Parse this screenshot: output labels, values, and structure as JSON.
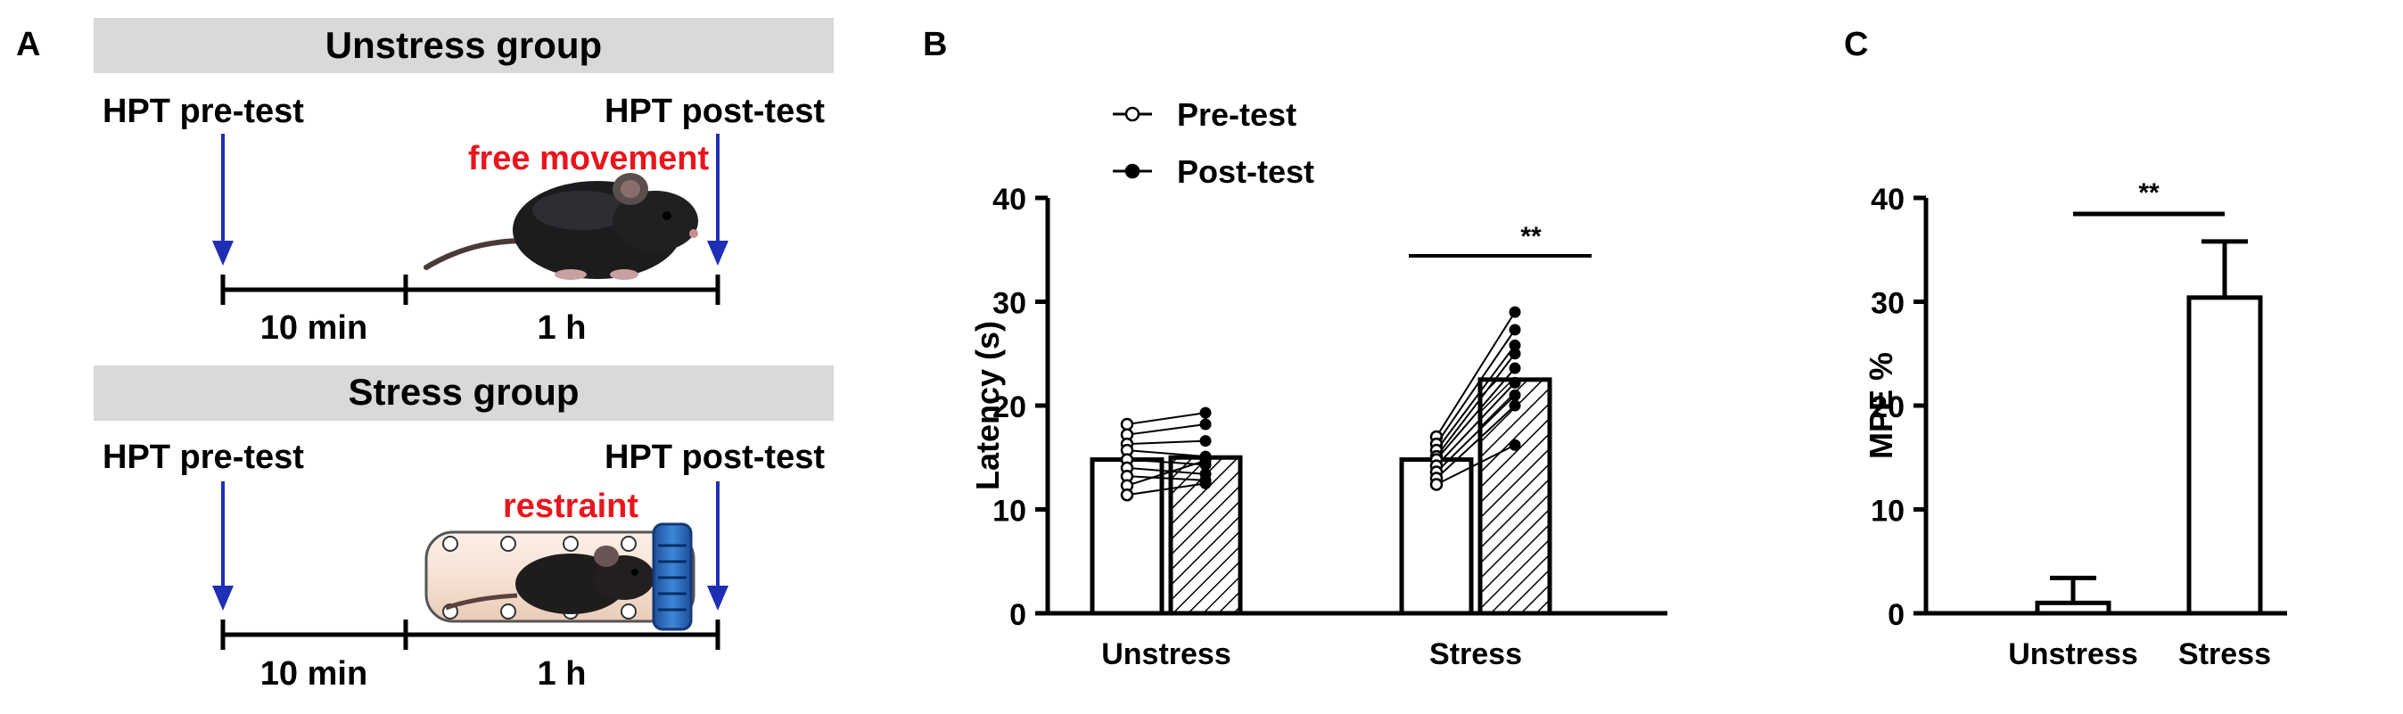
{
  "panel_labels": {
    "a": "A",
    "b": "B",
    "c": "C"
  },
  "panel_a": {
    "unstress": {
      "header": "Unstress group",
      "pre_label": "HPT pre-test",
      "post_label": "HPT post-test",
      "condition": "free movement",
      "interval_1": "10 min",
      "interval_2": "1 h"
    },
    "stress": {
      "header": "Stress group",
      "pre_label": "HPT pre-test",
      "post_label": "HPT post-test",
      "condition": "restraint",
      "interval_1": "10 min",
      "interval_2": "1 h"
    },
    "colors": {
      "arrow": "#1f2fb3",
      "condition_text": "#e8161c",
      "header_bg": "#d9d9d9",
      "tube_cap": "#2f6fc4"
    }
  },
  "chart_data": [
    {
      "type": "bar",
      "title": "",
      "xlabel": "",
      "ylabel": "Latency (s)",
      "ylim": [
        0,
        40
      ],
      "yticks": [
        "0",
        "10",
        "20",
        "30",
        "40"
      ],
      "categories": [
        "Unstress",
        "Stress"
      ],
      "series": [
        {
          "name": "Pre-test",
          "values": [
            14.8,
            14.8
          ],
          "fill": "open"
        },
        {
          "name": "Post-test",
          "values": [
            15.0,
            22.5
          ],
          "fill": "hatched"
        }
      ],
      "paired_points": {
        "Unstress": [
          [
            18.2,
            19.3
          ],
          [
            17.2,
            18.2
          ],
          [
            16.3,
            16.6
          ],
          [
            15.7,
            15.1
          ],
          [
            14.8,
            14.3
          ],
          [
            14.0,
            13.4
          ],
          [
            13.2,
            12.8
          ],
          [
            12.3,
            14.7
          ],
          [
            11.4,
            12.5
          ]
        ],
        "Stress": [
          [
            17.0,
            29.0
          ],
          [
            16.3,
            27.3
          ],
          [
            15.7,
            25.8
          ],
          [
            15.1,
            25.0
          ],
          [
            14.8,
            23.6
          ],
          [
            14.2,
            22.2
          ],
          [
            13.6,
            21.0
          ],
          [
            13.0,
            20.0
          ],
          [
            12.4,
            16.2
          ]
        ]
      },
      "legend": {
        "position": "top-left",
        "entries": [
          "Pre-test",
          "Post-test"
        ]
      },
      "annotations": [
        {
          "text": "**",
          "between": "Stress Pre-test and Post-test"
        }
      ]
    },
    {
      "type": "bar",
      "title": "",
      "xlabel": "",
      "ylabel": "MPE %",
      "ylim": [
        0,
        40
      ],
      "yticks": [
        "0",
        "10",
        "20",
        "30",
        "40"
      ],
      "categories": [
        "Unstress",
        "Stress"
      ],
      "values": [
        1.0,
        30.4
      ],
      "errors": [
        2.4,
        5.4
      ],
      "annotations": [
        {
          "text": "**",
          "between": "Unstress and Stress"
        }
      ]
    }
  ]
}
